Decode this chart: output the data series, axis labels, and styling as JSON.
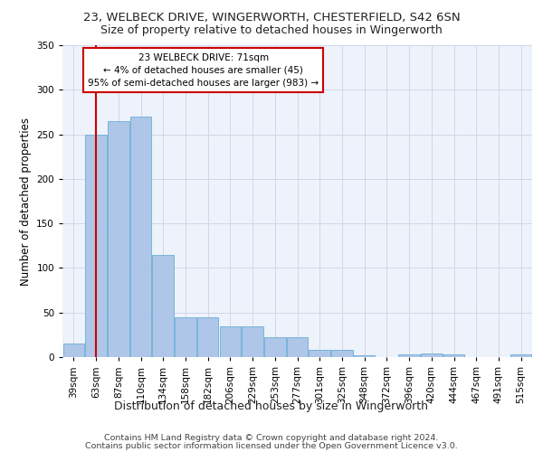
{
  "title1": "23, WELBECK DRIVE, WINGERWORTH, CHESTERFIELD, S42 6SN",
  "title2": "Size of property relative to detached houses in Wingerworth",
  "xlabel": "Distribution of detached houses by size in Wingerworth",
  "ylabel": "Number of detached properties",
  "categories": [
    "39sqm",
    "63sqm",
    "87sqm",
    "110sqm",
    "134sqm",
    "158sqm",
    "182sqm",
    "206sqm",
    "229sqm",
    "253sqm",
    "277sqm",
    "301sqm",
    "325sqm",
    "348sqm",
    "372sqm",
    "396sqm",
    "420sqm",
    "444sqm",
    "467sqm",
    "491sqm",
    "515sqm"
  ],
  "values": [
    15,
    250,
    265,
    270,
    115,
    45,
    45,
    35,
    35,
    22,
    22,
    8,
    8,
    2,
    0,
    3,
    4,
    3,
    0,
    0,
    3
  ],
  "bar_color": "#aec6e8",
  "bar_edge_color": "#6aaed6",
  "grid_color": "#d0d8e8",
  "background_color": "#eef2fa",
  "vline_x": 1.0,
  "vline_color": "#cc0000",
  "annotation_text": "23 WELBECK DRIVE: 71sqm\n← 4% of detached houses are smaller (45)\n95% of semi-detached houses are larger (983) →",
  "annotation_box_color": "#cc0000",
  "ylim": [
    0,
    350
  ],
  "yticks": [
    0,
    50,
    100,
    150,
    200,
    250,
    300,
    350
  ],
  "footer1": "Contains HM Land Registry data © Crown copyright and database right 2024.",
  "footer2": "Contains public sector information licensed under the Open Government Licence v3.0.",
  "title1_fontsize": 9.5,
  "title2_fontsize": 9,
  "xlabel_fontsize": 9,
  "ylabel_fontsize": 8.5,
  "tick_fontsize": 7.5,
  "footer_fontsize": 6.8,
  "ann_fontsize": 7.5
}
